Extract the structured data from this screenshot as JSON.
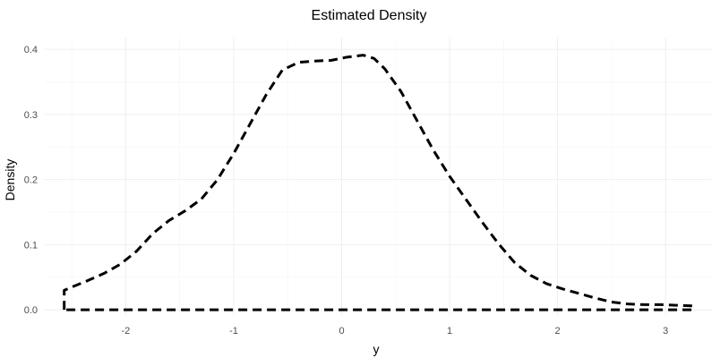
{
  "chart_data": {
    "type": "line",
    "title": "Estimated Density",
    "xlabel": "y",
    "ylabel": "Density",
    "xlim": [
      -2.75,
      3.43
    ],
    "ylim": [
      -0.008,
      0.418
    ],
    "x_ticks": [
      -2,
      -1,
      0,
      1,
      2,
      3
    ],
    "y_ticks": [
      0.0,
      0.1,
      0.2,
      0.3,
      0.4
    ],
    "x_tick_labels": [
      "-2",
      "-1",
      "0",
      "1",
      "2",
      "3"
    ],
    "y_tick_labels": [
      "0.0",
      "0.1",
      "0.2",
      "0.3",
      "0.4"
    ],
    "grid": true,
    "line_style": "dashed",
    "line_color": "#000000",
    "series": [
      {
        "x": [
          -2.57,
          -2.57,
          -2.57,
          -2.5,
          -2.35,
          -2.2,
          -2.05,
          -1.9,
          -1.75,
          -1.6,
          -1.45,
          -1.3,
          -1.15,
          -1.0,
          -0.85,
          -0.7,
          -0.55,
          -0.4,
          -0.25,
          -0.1,
          0.05,
          0.2,
          0.3,
          0.4,
          0.55,
          0.7,
          0.85,
          1.0,
          1.15,
          1.3,
          1.45,
          1.6,
          1.75,
          1.9,
          2.05,
          2.2,
          2.35,
          2.5,
          2.65,
          2.8,
          2.95,
          3.1,
          3.25,
          3.25,
          -2.57
        ],
        "y": [
          0.0,
          0.018,
          0.03,
          0.035,
          0.045,
          0.056,
          0.07,
          0.09,
          0.117,
          0.137,
          0.152,
          0.17,
          0.2,
          0.24,
          0.285,
          0.33,
          0.368,
          0.38,
          0.382,
          0.383,
          0.388,
          0.391,
          0.386,
          0.37,
          0.335,
          0.29,
          0.245,
          0.205,
          0.17,
          0.135,
          0.102,
          0.073,
          0.053,
          0.04,
          0.032,
          0.025,
          0.018,
          0.012,
          0.009,
          0.008,
          0.008,
          0.007,
          0.006,
          0.0,
          0.0
        ]
      }
    ]
  }
}
